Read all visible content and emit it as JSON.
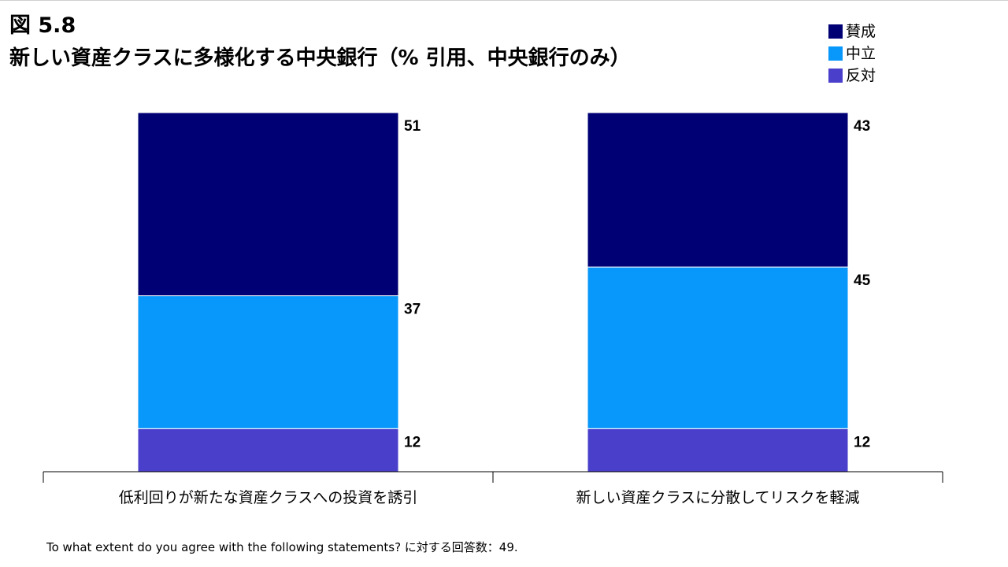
{
  "figure": {
    "label": "図 5.8",
    "title": "新しい資産クラスに多様化する中央銀行（% 引用、中央銀行のみ）"
  },
  "colors": {
    "賛成": "#000075",
    "中立": "#0897fa",
    "反対": "#4a3fcb",
    "axis": "#000000",
    "bar_separator": "#ffffff"
  },
  "legend": [
    {
      "label": "賛成",
      "color": "#000075"
    },
    {
      "label": "中立",
      "color": "#0897fa"
    },
    {
      "label": "反対",
      "color": "#4a3fcb"
    }
  ],
  "chart_data": {
    "type": "bar",
    "stacked": true,
    "categories": [
      "低利回りが新たな資産クラスへの投資を誘引",
      "新しい資産クラスに分散してリスクを軽減"
    ],
    "series": [
      {
        "name": "反対",
        "values": [
          12,
          12
        ]
      },
      {
        "name": "中立",
        "values": [
          37,
          45
        ]
      },
      {
        "name": "賛成",
        "values": [
          51,
          43
        ]
      }
    ],
    "ylim": [
      0,
      100
    ],
    "grid": false,
    "legend_position": "top-right",
    "value_labels": true,
    "title": "",
    "xlabel": "",
    "ylabel": ""
  },
  "footnote": "To what extent do you agree with the following statements? に対する回答数：49."
}
